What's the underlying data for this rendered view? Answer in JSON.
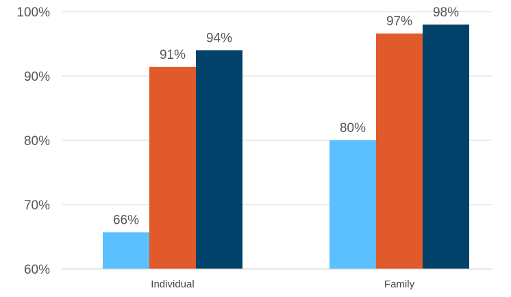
{
  "chart_data": {
    "type": "bar",
    "categories": [
      "Individual",
      "Family"
    ],
    "series": [
      {
        "values": [
          65.7,
          80.0
        ],
        "labels": [
          "66%",
          "80%"
        ],
        "color": "#5BC0FF"
      },
      {
        "values": [
          91.4,
          96.6
        ],
        "labels": [
          "91%",
          "97%"
        ],
        "color": "#E05A2B"
      },
      {
        "values": [
          94.0,
          98.0
        ],
        "labels": [
          "94%",
          "98%"
        ],
        "color": "#00426A"
      }
    ],
    "ylim": [
      60,
      100
    ],
    "yticks": [
      60,
      70,
      80,
      90,
      100
    ],
    "ytick_labels": [
      "60%",
      "70%",
      "80%",
      "90%",
      "100%"
    ],
    "grid": true,
    "title": "",
    "xlabel": "",
    "ylabel": ""
  }
}
